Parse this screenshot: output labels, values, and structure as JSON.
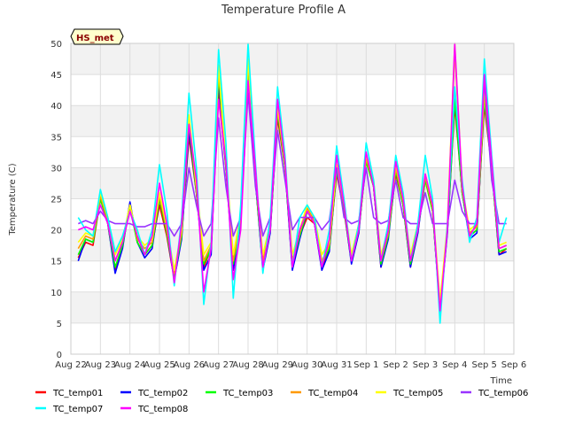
{
  "chart_data": {
    "type": "line",
    "title": "Temperature Profile A",
    "xlabel": "Time",
    "ylabel": "Temperature (C)",
    "badge": "HS_met",
    "ylim": [
      0,
      50
    ],
    "yticks": [
      0,
      5,
      10,
      15,
      20,
      25,
      30,
      35,
      40,
      45,
      50
    ],
    "xlim": [
      0,
      15
    ],
    "xticks": [
      "Aug 22",
      "Aug 23",
      "Aug 24",
      "Aug 25",
      "Aug 26",
      "Aug 27",
      "Aug 28",
      "Aug 29",
      "Aug 30",
      "Aug 31",
      "Sep 1",
      "Sep 2",
      "Sep 3",
      "Sep 4",
      "Sep 5",
      "Sep 6"
    ],
    "grid": true,
    "legend_position": "bottom",
    "x_days": [
      0.25,
      0.5,
      0.75,
      1.0,
      1.25,
      1.5,
      1.75,
      2.0,
      2.25,
      2.5,
      2.75,
      3.0,
      3.25,
      3.5,
      3.75,
      4.0,
      4.25,
      4.5,
      4.75,
      5.0,
      5.25,
      5.5,
      5.75,
      6.0,
      6.25,
      6.5,
      6.75,
      7.0,
      7.25,
      7.5,
      7.75,
      8.0,
      8.25,
      8.5,
      8.75,
      9.0,
      9.25,
      9.5,
      9.75,
      10.0,
      10.25,
      10.5,
      10.75,
      11.0,
      11.25,
      11.5,
      11.75,
      12.0,
      12.25,
      12.5,
      12.75,
      13.0,
      13.25,
      13.5,
      13.75,
      14.0,
      14.25,
      14.5,
      14.75
    ],
    "series": [
      {
        "name": "TC_temp01",
        "color": "#ff0000",
        "values": [
          15.5,
          18,
          17.5,
          25,
          21,
          13.5,
          17.5,
          24,
          18,
          16,
          17.5,
          24,
          19,
          12,
          19,
          35,
          26,
          14,
          17,
          42,
          30,
          14,
          22,
          45,
          28,
          14,
          20,
          38,
          30,
          14,
          19,
          22,
          21,
          14,
          17,
          29,
          23,
          15,
          20,
          31,
          27,
          14,
          19,
          29,
          24,
          14,
          20,
          28,
          23,
          7,
          20,
          40,
          26,
          19,
          20,
          40,
          30,
          16,
          17
        ]
      },
      {
        "name": "TC_temp02",
        "color": "#0000ff",
        "values": [
          15,
          18.5,
          18,
          25.5,
          21,
          13,
          17,
          24.5,
          18,
          15.5,
          17,
          25,
          19.5,
          12,
          18.5,
          36,
          26,
          13.5,
          16,
          44,
          30,
          13.5,
          21,
          46,
          28,
          13.5,
          19.5,
          39,
          30,
          13.5,
          18.5,
          23,
          21,
          13.5,
          16.5,
          29.5,
          23.5,
          14.5,
          19.5,
          32,
          27,
          14,
          18.5,
          29.5,
          24,
          14,
          19.5,
          28.5,
          23,
          7,
          19.5,
          41,
          26,
          18.5,
          19.5,
          41,
          30,
          16,
          16.5
        ]
      },
      {
        "name": "TC_temp03",
        "color": "#00ff00",
        "values": [
          16,
          18.5,
          18,
          25,
          21,
          14,
          17.5,
          23.5,
          18,
          16,
          17.5,
          25,
          19.5,
          12.5,
          19,
          37,
          26,
          14.5,
          17,
          45,
          30,
          14.5,
          21.5,
          46,
          28,
          14,
          20,
          39,
          30,
          14.5,
          19,
          23,
          21,
          14.5,
          17,
          29.5,
          23.5,
          15,
          20,
          31,
          27,
          14.5,
          19,
          29.5,
          24,
          14.5,
          20,
          28,
          23,
          7.5,
          20,
          41,
          26,
          19,
          20,
          41,
          30,
          16.5,
          17
        ]
      },
      {
        "name": "TC_temp04",
        "color": "#ff9900",
        "values": [
          17,
          19,
          18.5,
          25.5,
          21.5,
          15,
          18,
          24,
          18.5,
          17,
          18,
          25.5,
          20,
          13,
          19.5,
          38,
          26.5,
          15,
          17.5,
          46,
          30.5,
          15,
          22,
          47,
          28.5,
          15,
          20.5,
          39.5,
          30.5,
          15,
          19.5,
          23.5,
          21.5,
          15,
          17.5,
          30,
          24,
          15.5,
          20.5,
          31.5,
          27.5,
          15,
          19.5,
          30,
          24.5,
          15,
          20.5,
          28.5,
          23.5,
          8,
          20.5,
          49,
          26.5,
          19.5,
          20.5,
          42,
          30.5,
          17,
          17.5
        ]
      },
      {
        "name": "TC_temp05",
        "color": "#ffff00",
        "values": [
          18,
          19.5,
          19,
          26,
          22,
          16,
          18.5,
          24,
          19,
          17.5,
          18.5,
          26,
          20.5,
          13.5,
          20,
          38.5,
          27,
          16,
          18,
          46.5,
          31,
          16,
          22.5,
          47.5,
          29,
          16,
          21,
          40,
          31,
          16,
          20,
          24,
          22,
          16,
          18,
          30.5,
          24.5,
          16,
          21,
          32,
          28,
          16,
          20,
          30.5,
          25,
          16,
          21,
          29,
          24,
          8.5,
          21,
          50,
          27,
          20,
          21,
          43,
          31,
          17.5,
          18
        ]
      },
      {
        "name": "TC_temp06",
        "color": "#9933ff",
        "values": [
          21,
          21.5,
          21,
          23,
          21.5,
          21,
          21,
          21,
          20.5,
          20.5,
          21,
          21,
          21,
          19,
          21,
          30,
          24,
          19,
          21,
          38,
          27,
          19,
          22,
          42,
          27,
          19,
          22,
          36,
          28,
          20,
          22,
          22,
          22,
          20,
          21.5,
          30,
          22,
          21,
          21.5,
          30,
          22,
          21,
          21.5,
          28,
          22,
          21,
          21,
          26,
          21,
          21,
          21,
          28,
          23,
          21,
          21,
          44,
          28,
          21,
          21
        ]
      },
      {
        "name": "TC_temp07",
        "color": "#00ffff",
        "values": [
          22,
          20,
          19,
          26.5,
          22,
          16.5,
          19,
          23,
          20,
          16,
          20,
          30.5,
          23,
          11,
          22,
          42,
          30,
          8,
          18,
          49,
          34,
          9,
          24,
          50,
          31,
          13,
          22,
          43,
          32,
          14,
          22,
          24,
          22,
          14,
          20,
          33.5,
          25,
          15,
          21,
          34,
          28,
          15,
          21,
          32,
          26,
          15,
          21,
          32,
          25,
          5,
          21,
          43,
          28,
          18,
          22,
          47.5,
          32,
          18,
          22
        ]
      },
      {
        "name": "TC_temp08",
        "color": "#ff00ff",
        "values": [
          20,
          20.5,
          20,
          24,
          21,
          15,
          18,
          23,
          19,
          16,
          19,
          27.5,
          21,
          11.5,
          21,
          37,
          28,
          10,
          17,
          41,
          31,
          12,
          20,
          44,
          30,
          14,
          20,
          41,
          31,
          14,
          20,
          23,
          21,
          14,
          18.5,
          32,
          24,
          15,
          20,
          32.5,
          27,
          15,
          20,
          31,
          25,
          15,
          20,
          29,
          24,
          7,
          20,
          50,
          27,
          19,
          21,
          45,
          31,
          17,
          17.5
        ]
      }
    ]
  }
}
